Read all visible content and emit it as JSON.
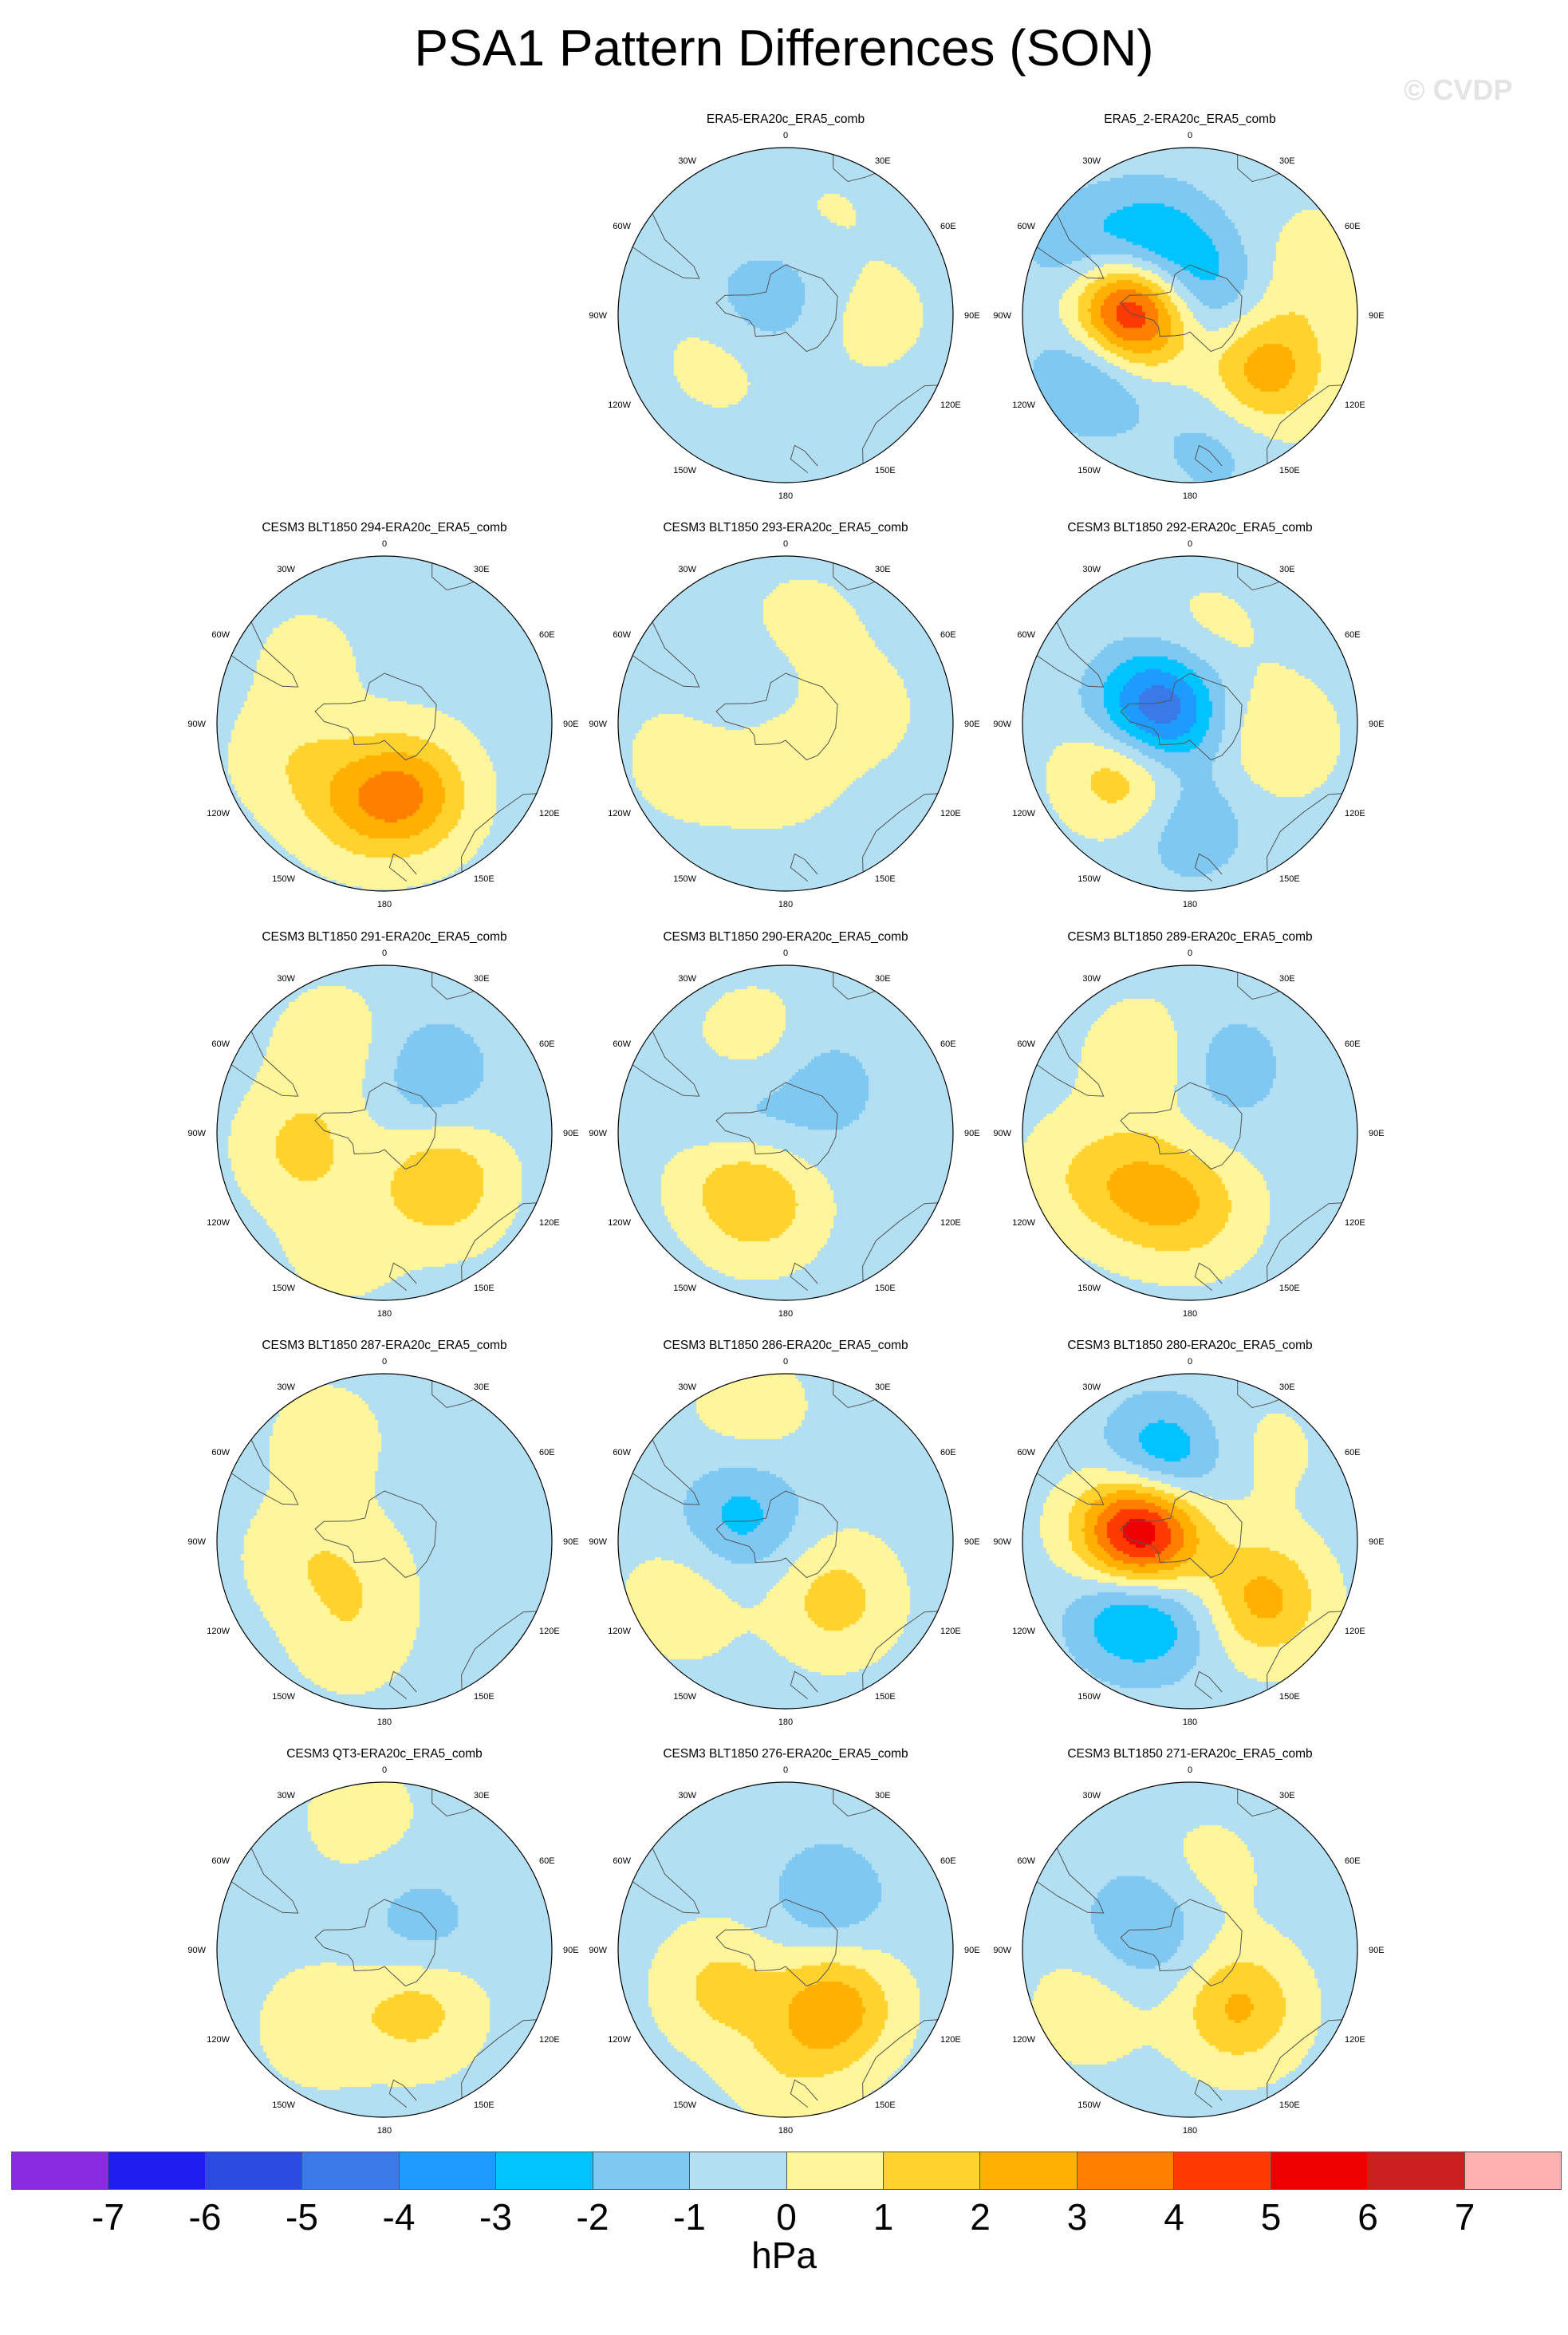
{
  "figure": {
    "title": "PSA1 Pattern Differences (SON)",
    "copyright": "© CVDP",
    "units": "hPa"
  },
  "map_labels": [
    "0",
    "30E",
    "60E",
    "90E",
    "120E",
    "150E",
    "180",
    "150W",
    "120W",
    "90W",
    "60W",
    "30W"
  ],
  "colorbar": {
    "colors": [
      "#8a2be2",
      "#1e1ef0",
      "#2a4be0",
      "#3a7ae8",
      "#1e9bff",
      "#00c3ff",
      "#7ec8f2",
      "#b2dff2",
      "#fff59a",
      "#ffd22e",
      "#ffb000",
      "#ff7f00",
      "#ff3a00",
      "#ee0000",
      "#cc2020",
      "#ffb0b0"
    ],
    "ticks": [
      "-7",
      "-6",
      "-5",
      "-4",
      "-3",
      "-2",
      "-1",
      "0",
      "1",
      "2",
      "3",
      "4",
      "5",
      "6",
      "7"
    ]
  },
  "panels": [
    {
      "title": "ERA5-ERA20c_ERA5_comb",
      "row": 0,
      "col": 1,
      "blobs": [
        {
          "lon": 240,
          "r": 0.4,
          "v": 1.2
        },
        {
          "lon": 270,
          "r": 0.2,
          "v": -1.5
        },
        {
          "lon": 25,
          "r": 0.55,
          "v": 0.8
        },
        {
          "lon": 90,
          "r": 0.5,
          "v": 0.8
        },
        {
          "lon": 30,
          "r": 0.35,
          "v": -0.8
        }
      ]
    },
    {
      "title": "ERA5_2-ERA20c_ERA5_comb",
      "row": 0,
      "col": 2,
      "blobs": [
        {
          "lon": 275,
          "r": 0.35,
          "v": 7
        },
        {
          "lon": 330,
          "r": 0.45,
          "v": -3
        },
        {
          "lon": 240,
          "r": 0.65,
          "v": -2.5
        },
        {
          "lon": 300,
          "r": 0.75,
          "v": -1.5
        },
        {
          "lon": 125,
          "r": 0.55,
          "v": 3
        },
        {
          "lon": 70,
          "r": 0.8,
          "v": 1
        },
        {
          "lon": 30,
          "r": 0.15,
          "v": -2
        },
        {
          "lon": 170,
          "r": 0.8,
          "v": -1
        }
      ]
    },
    {
      "title": "CESM3 BLT1850 294-ERA20c_ERA5_comb",
      "row": 1,
      "col": 0,
      "blobs": [
        {
          "lon": 160,
          "r": 0.45,
          "v": 3
        },
        {
          "lon": 200,
          "r": 0.5,
          "v": 1.8
        },
        {
          "lon": 250,
          "r": 0.6,
          "v": 1
        },
        {
          "lon": 310,
          "r": 0.6,
          "v": 0.6
        }
      ]
    },
    {
      "title": "CESM3 BLT1850 293-ERA20c_ERA5_comb",
      "row": 1,
      "col": 1,
      "blobs": [
        {
          "lon": 200,
          "r": 0.2,
          "v": 1.5
        },
        {
          "lon": 250,
          "r": 0.6,
          "v": 1
        },
        {
          "lon": 10,
          "r": 0.55,
          "v": 0.8
        },
        {
          "lon": 80,
          "r": 0.45,
          "v": 0.7
        },
        {
          "lon": 300,
          "r": 0.25,
          "v": -1.2
        }
      ]
    },
    {
      "title": "CESM3 BLT1850 292-ERA20c_ERA5_comb",
      "row": 1,
      "col": 2,
      "blobs": [
        {
          "lon": 280,
          "r": 0.25,
          "v": -4
        },
        {
          "lon": 235,
          "r": 0.45,
          "v": 3
        },
        {
          "lon": 180,
          "r": 0.6,
          "v": -1.5
        },
        {
          "lon": 100,
          "r": 0.5,
          "v": 1.3
        },
        {
          "lon": 10,
          "r": 0.5,
          "v": 0.8
        },
        {
          "lon": 330,
          "r": 0.15,
          "v": -1.5
        }
      ]
    },
    {
      "title": "CESM3 BLT1850 291-ERA20c_ERA5_comb",
      "row": 2,
      "col": 0,
      "blobs": [
        {
          "lon": 130,
          "r": 0.45,
          "v": 2.3
        },
        {
          "lon": 260,
          "r": 0.5,
          "v": 1.6
        },
        {
          "lon": 40,
          "r": 0.45,
          "v": -1.5
        },
        {
          "lon": 330,
          "r": 0.6,
          "v": 1
        },
        {
          "lon": 200,
          "r": 0.7,
          "v": 0.8
        }
      ]
    },
    {
      "title": "CESM3 BLT1850 290-ERA20c_ERA5_comb",
      "row": 2,
      "col": 1,
      "blobs": [
        {
          "lon": 200,
          "r": 0.45,
          "v": 1.8
        },
        {
          "lon": 240,
          "r": 0.4,
          "v": 1.4
        },
        {
          "lon": 280,
          "r": 0.3,
          "v": -1.5
        },
        {
          "lon": 340,
          "r": 0.55,
          "v": 1
        },
        {
          "lon": 40,
          "r": 0.35,
          "v": -1.2
        }
      ]
    },
    {
      "title": "CESM3 BLT1850 289-ERA20c_ERA5_comb",
      "row": 2,
      "col": 2,
      "blobs": [
        {
          "lon": 175,
          "r": 0.45,
          "v": 1.6
        },
        {
          "lon": 220,
          "r": 0.45,
          "v": 2
        },
        {
          "lon": 330,
          "r": 0.5,
          "v": 1.2
        },
        {
          "lon": 30,
          "r": 0.45,
          "v": -1.3
        },
        {
          "lon": 250,
          "r": 0.7,
          "v": 1
        }
      ]
    },
    {
      "title": "CESM3 BLT1850 287-ERA20c_ERA5_comb",
      "row": 3,
      "col": 0,
      "blobs": [
        {
          "lon": 260,
          "r": 0.5,
          "v": 0.9
        },
        {
          "lon": 200,
          "r": 0.6,
          "v": 0.9
        },
        {
          "lon": 330,
          "r": 0.7,
          "v": 0.8
        },
        {
          "lon": 220,
          "r": 0.25,
          "v": 0.7
        }
      ]
    },
    {
      "title": "CESM3 BLT1850 286-ERA20c_ERA5_comb",
      "row": 3,
      "col": 1,
      "blobs": [
        {
          "lon": 300,
          "r": 0.3,
          "v": -2
        },
        {
          "lon": 140,
          "r": 0.45,
          "v": 1.8
        },
        {
          "lon": 240,
          "r": 0.7,
          "v": 1
        },
        {
          "lon": 345,
          "r": 0.8,
          "v": 0.9
        }
      ]
    },
    {
      "title": "CESM3 BLT1850 280-ERA20c_ERA5_comb",
      "row": 3,
      "col": 2,
      "blobs": [
        {
          "lon": 280,
          "r": 0.3,
          "v": 7
        },
        {
          "lon": 340,
          "r": 0.5,
          "v": -3
        },
        {
          "lon": 220,
          "r": 0.55,
          "v": -3
        },
        {
          "lon": 130,
          "r": 0.55,
          "v": 2.8
        },
        {
          "lon": 40,
          "r": 0.7,
          "v": 0.6
        },
        {
          "lon": 180,
          "r": 0.5,
          "v": -0.8
        }
      ]
    },
    {
      "title": "CESM3 QT3-ERA20c_ERA5_comb",
      "row": 4,
      "col": 0,
      "blobs": [
        {
          "lon": 150,
          "r": 0.4,
          "v": 1.8
        },
        {
          "lon": 220,
          "r": 0.6,
          "v": 1
        },
        {
          "lon": 350,
          "r": 0.8,
          "v": 0.8
        },
        {
          "lon": 60,
          "r": 0.25,
          "v": -1.2
        }
      ]
    },
    {
      "title": "CESM3 BLT1850 276-ERA20c_ERA5_comb",
      "row": 4,
      "col": 1,
      "blobs": [
        {
          "lon": 140,
          "r": 0.45,
          "v": 3
        },
        {
          "lon": 240,
          "r": 0.45,
          "v": 1.6
        },
        {
          "lon": 40,
          "r": 0.4,
          "v": -1.5
        },
        {
          "lon": 180,
          "r": 0.7,
          "v": 0.9
        }
      ]
    },
    {
      "title": "CESM3 BLT1850 271-ERA20c_ERA5_comb",
      "row": 4,
      "col": 2,
      "blobs": [
        {
          "lon": 140,
          "r": 0.45,
          "v": 2.5
        },
        {
          "lon": 300,
          "r": 0.3,
          "v": -1.8
        },
        {
          "lon": 240,
          "r": 0.7,
          "v": 0.9
        },
        {
          "lon": 10,
          "r": 0.45,
          "v": 0.8
        }
      ]
    }
  ]
}
